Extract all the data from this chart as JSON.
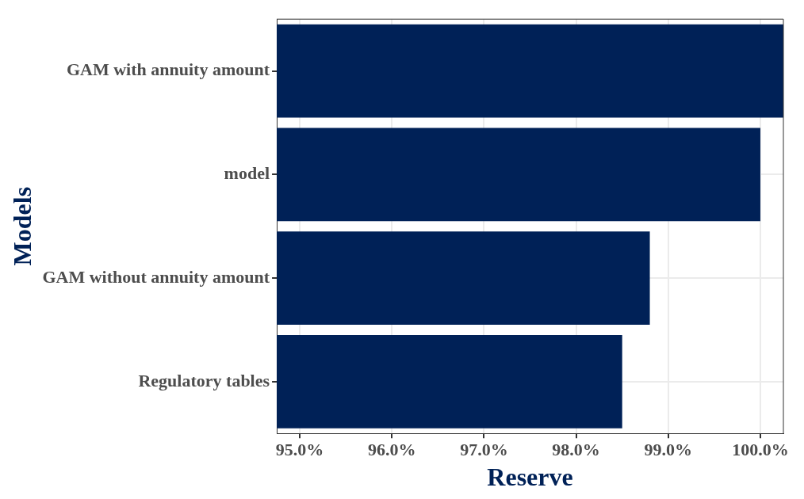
{
  "chart_data": {
    "type": "bar",
    "orientation": "horizontal",
    "xlabel": "Reserve",
    "ylabel": "Models",
    "categories": [
      "GAM with annuity amount",
      "model",
      "GAM without annuity amount",
      "Regulatory tables"
    ],
    "values": [
      100.25,
      100.0,
      98.8,
      98.5
    ],
    "color": "#002157",
    "xlim": [
      94.75,
      100.25
    ],
    "xticks": [
      {
        "value": 95,
        "label": "95.0%"
      },
      {
        "value": 96,
        "label": "96.0%"
      },
      {
        "value": 97,
        "label": "97.0%"
      },
      {
        "value": 98,
        "label": "98.0%"
      },
      {
        "value": 99,
        "label": "99.0%"
      },
      {
        "value": 100,
        "label": "100.0%"
      }
    ],
    "grid": true,
    "legend": false
  }
}
